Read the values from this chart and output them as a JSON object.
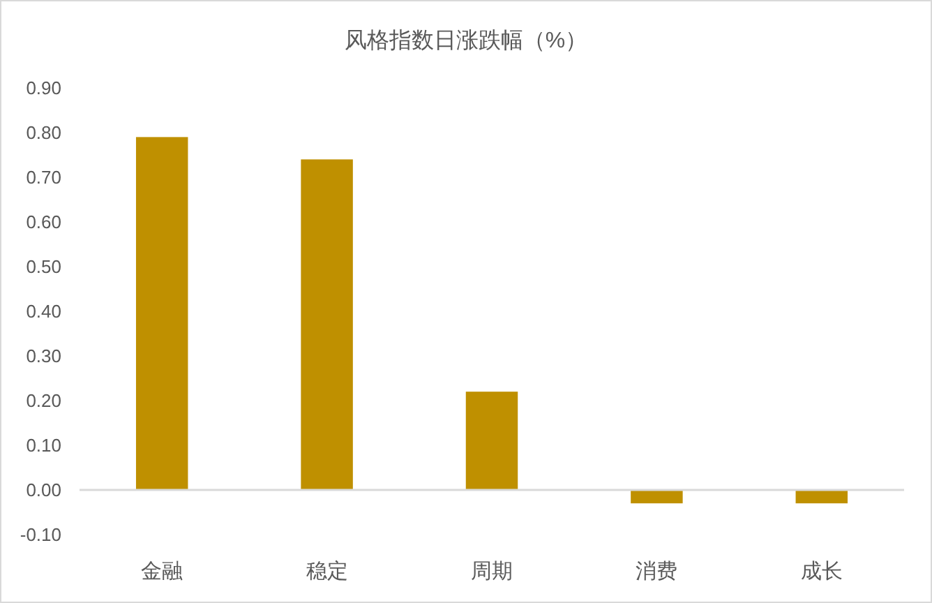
{
  "chart_data": {
    "type": "bar",
    "title": "风格指数日涨跌幅（%）",
    "categories": [
      "金融",
      "稳定",
      "周期",
      "消费",
      "成长"
    ],
    "values": [
      0.79,
      0.74,
      0.22,
      -0.03,
      -0.03
    ],
    "color": "#bf9000",
    "ylim": [
      -0.1,
      0.9
    ],
    "yticks": [
      {
        "value": -0.1,
        "label": "-0.10"
      },
      {
        "value": 0,
        "label": "0.00"
      },
      {
        "value": 0.1,
        "label": "0.10"
      },
      {
        "value": 0.2,
        "label": "0.20"
      },
      {
        "value": 0.3,
        "label": "0.30"
      },
      {
        "value": 0.4,
        "label": "0.40"
      },
      {
        "value": 0.5,
        "label": "0.50"
      },
      {
        "value": 0.6,
        "label": "0.60"
      },
      {
        "value": 0.7,
        "label": "0.70"
      },
      {
        "value": 0.8,
        "label": "0.80"
      },
      {
        "value": 0.9,
        "label": "0.90"
      }
    ],
    "ref_lines": [
      {
        "axis": "y",
        "value": 0,
        "color": "#d9d9d9"
      }
    ],
    "grid": false,
    "legend": false
  }
}
